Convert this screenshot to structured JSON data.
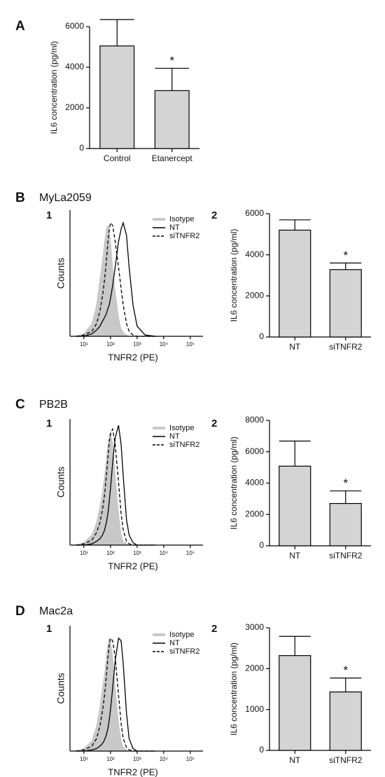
{
  "chart_data": [
    {
      "type": "bar",
      "panel": "A",
      "ylabel": "IL6 concentration (pg/ml)",
      "categories": [
        "Control",
        "Etanercept"
      ],
      "values": [
        5050,
        2850
      ],
      "errors": [
        1300,
        1100
      ],
      "significance": [
        null,
        "*"
      ],
      "color": "#d4d4d4",
      "ylim": [
        0,
        6500
      ],
      "yticks": [
        0,
        2000,
        4000,
        6000
      ]
    },
    {
      "type": "line",
      "panel": "B",
      "title": "MyLa2059",
      "label": "1",
      "xlabel": "TNFR2 (PE)",
      "ylabel": "Counts",
      "xscale": "log",
      "xlim": [
        3,
        300000
      ],
      "xticks": [
        {
          "value": 10,
          "label": "10¹"
        },
        {
          "value": 100,
          "label": "10²"
        },
        {
          "value": 1000,
          "label": "10³"
        },
        {
          "value": 10000,
          "label": "10⁴"
        },
        {
          "value": 100000,
          "label": "10⁵"
        }
      ],
      "ylim": [
        0,
        100
      ],
      "legend": "upper right",
      "x": [
        5,
        10,
        20,
        30,
        40,
        50,
        60,
        70,
        80,
        90,
        100,
        120,
        150,
        200,
        250,
        300,
        400,
        500,
        700,
        1000,
        2000,
        5000
      ],
      "series": [
        {
          "name": "Isotype",
          "color": "#c8c8c8",
          "fill": true,
          "values": [
            0,
            2,
            10,
            25,
            45,
            60,
            75,
            85,
            88,
            85,
            75,
            55,
            35,
            15,
            6,
            3,
            1,
            0,
            0,
            0,
            0,
            0
          ]
        },
        {
          "name": "NT",
          "color": "#000000",
          "values": [
            0,
            0,
            2,
            5,
            8,
            12,
            15,
            18,
            22,
            25,
            30,
            40,
            55,
            75,
            85,
            90,
            80,
            55,
            25,
            8,
            1,
            0
          ]
        },
        {
          "name": "siTNFR2",
          "color": "#000000",
          "dash": true,
          "values": [
            0,
            1,
            4,
            10,
            20,
            32,
            45,
            60,
            75,
            85,
            90,
            88,
            75,
            55,
            38,
            25,
            10,
            4,
            1,
            0,
            0,
            0
          ]
        }
      ]
    },
    {
      "type": "bar",
      "label": "2",
      "ylabel": "IL6 concentration (pg/ml)",
      "categories": [
        "NT",
        "siTNFR2"
      ],
      "values": [
        5200,
        3280
      ],
      "errors": [
        500,
        320
      ],
      "significance": [
        null,
        "*"
      ],
      "color": "#d4d4d4",
      "ylim": [
        0,
        6000
      ],
      "yticks": [
        0,
        2000,
        4000,
        6000
      ]
    },
    {
      "type": "line",
      "panel": "C",
      "title": "PB2B",
      "label": "1",
      "xlabel": "TNFR2 (PE)",
      "ylabel": "Counts",
      "xscale": "log",
      "xlim": [
        3,
        300000
      ],
      "xticks": [
        {
          "value": 10,
          "label": "10¹"
        },
        {
          "value": 100,
          "label": "10²"
        },
        {
          "value": 1000,
          "label": "10³"
        },
        {
          "value": 10000,
          "label": "10⁴"
        },
        {
          "value": 100000,
          "label": "10⁵"
        }
      ],
      "ylim": [
        0,
        100
      ],
      "legend": "upper right",
      "x": [
        5,
        10,
        20,
        30,
        40,
        50,
        60,
        70,
        80,
        90,
        100,
        120,
        150,
        200,
        250,
        300,
        400,
        500,
        700,
        1000,
        2000,
        5000
      ],
      "series": [
        {
          "name": "Isotype",
          "color": "#c8c8c8",
          "fill": true,
          "values": [
            0,
            2,
            8,
            18,
            30,
            42,
            55,
            68,
            80,
            87,
            90,
            80,
            55,
            25,
            8,
            3,
            1,
            0,
            0,
            0,
            0,
            0
          ]
        },
        {
          "name": "NT",
          "color": "#000000",
          "values": [
            0,
            0,
            1,
            3,
            5,
            8,
            12,
            18,
            25,
            35,
            45,
            65,
            85,
            95,
            80,
            55,
            20,
            8,
            2,
            0,
            0,
            0
          ]
        },
        {
          "name": "siTNFR2",
          "color": "#000000",
          "dash": true,
          "values": [
            0,
            1,
            4,
            10,
            18,
            28,
            40,
            55,
            70,
            82,
            88,
            92,
            80,
            50,
            25,
            12,
            3,
            1,
            0,
            0,
            0,
            0
          ]
        }
      ]
    },
    {
      "type": "bar",
      "label": "2",
      "ylabel": "IL6 concentration (pg/ml)",
      "categories": [
        "NT",
        "siTNFR2"
      ],
      "values": [
        5080,
        2700
      ],
      "errors": [
        1600,
        800
      ],
      "significance": [
        null,
        "*"
      ],
      "color": "#d4d4d4",
      "ylim": [
        0,
        8000
      ],
      "yticks": [
        0,
        2000,
        4000,
        6000,
        8000
      ]
    },
    {
      "type": "line",
      "panel": "D",
      "title": "Mac2a",
      "label": "1",
      "xlabel": "TNFR2 (PE)",
      "ylabel": "Counts",
      "xscale": "log",
      "xlim": [
        3,
        300000
      ],
      "xticks": [
        {
          "value": 10,
          "label": "10¹"
        },
        {
          "value": 100,
          "label": "10²"
        },
        {
          "value": 1000,
          "label": "10³"
        },
        {
          "value": 10000,
          "label": "10⁴"
        },
        {
          "value": 100000,
          "label": "10⁵"
        }
      ],
      "ylim": [
        0,
        100
      ],
      "legend": "upper right",
      "x": [
        5,
        10,
        20,
        30,
        40,
        50,
        60,
        70,
        80,
        90,
        100,
        120,
        150,
        200,
        250,
        300,
        400,
        500,
        700,
        1000,
        2000,
        5000
      ],
      "series": [
        {
          "name": "Isotype",
          "color": "#c8c8c8",
          "fill": true,
          "values": [
            0,
            2,
            8,
            20,
            35,
            50,
            62,
            75,
            85,
            90,
            88,
            75,
            50,
            22,
            8,
            3,
            1,
            0,
            0,
            0,
            0,
            0
          ]
        },
        {
          "name": "NT",
          "color": "#000000",
          "values": [
            0,
            0,
            1,
            2,
            4,
            6,
            9,
            13,
            18,
            25,
            33,
            50,
            72,
            90,
            88,
            70,
            30,
            10,
            2,
            0,
            0,
            0
          ]
        },
        {
          "name": "siTNFR2",
          "color": "#000000",
          "dash": true,
          "values": [
            0,
            1,
            4,
            10,
            20,
            32,
            45,
            60,
            75,
            85,
            90,
            88,
            75,
            45,
            22,
            10,
            3,
            1,
            0,
            0,
            0,
            0
          ]
        }
      ]
    },
    {
      "type": "bar",
      "label": "2",
      "ylabel": "IL6 concentration (pg/ml)",
      "categories": [
        "NT",
        "siTNFR2"
      ],
      "values": [
        2320,
        1430
      ],
      "errors": [
        470,
        340
      ],
      "significance": [
        null,
        "*"
      ],
      "color": "#d4d4d4",
      "ylim": [
        0,
        3000
      ],
      "yticks": [
        0,
        1000,
        2000,
        3000
      ]
    }
  ]
}
